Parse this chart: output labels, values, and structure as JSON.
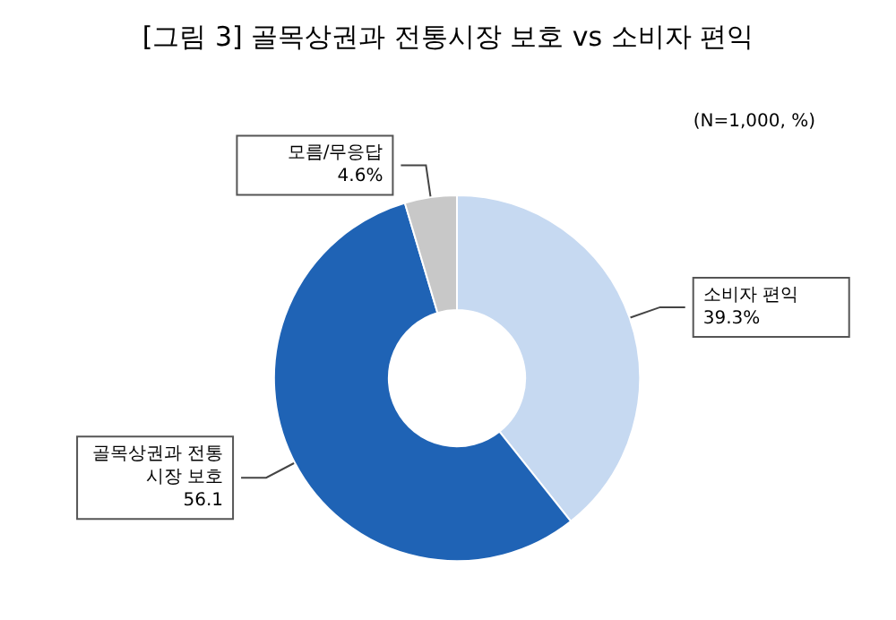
{
  "chart_data": {
    "type": "donut",
    "title": "[그림 3] 골목상권과 전통시장 보호 vs 소비자 편익",
    "subtitle": "(N=1,000, %)",
    "categories": [
      "소비자 편익",
      "골목상권과 전통시장 보호",
      "모름/무응답"
    ],
    "values": [
      39.3,
      56.1,
      4.6
    ],
    "value_labels": [
      "39.3%",
      "56.1",
      "4.6%"
    ],
    "colors": [
      "#c6d9f1",
      "#1f63b5",
      "#c8c8c8"
    ],
    "legend": false
  }
}
